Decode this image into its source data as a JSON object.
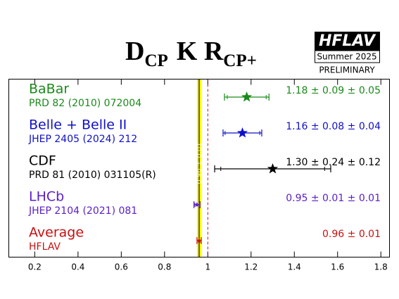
{
  "chart_data": {
    "type": "forest",
    "title_parts": [
      "D",
      "CP",
      "K R",
      "CP+"
    ],
    "logo": {
      "name": "HFLAV",
      "season": "Summer 2025",
      "status": "PRELIMINARY"
    },
    "xlim": [
      0.08,
      1.84
    ],
    "xticks": [
      0.2,
      0.4,
      0.6,
      0.8,
      1,
      1.2,
      1.4,
      1.6,
      1.8
    ],
    "reference_line": 1,
    "series": [
      {
        "name": "BaBar",
        "reference": "PRD 82 (2010) 072004",
        "color": "#1a8a1a",
        "value": 1.18,
        "stat": 0.09,
        "syst": 0.05,
        "value_label": "1.18 ± 0.09 ± 0.05"
      },
      {
        "name": "Belle + Belle II",
        "reference": "JHEP 2405 (2024) 212",
        "color": "#1010c8",
        "value": 1.16,
        "stat": 0.08,
        "syst": 0.04,
        "value_label": "1.16 ± 0.08 ± 0.04"
      },
      {
        "name": "CDF",
        "reference": "PRD 81 (2010) 031105(R)",
        "color": "#000000",
        "value": 1.3,
        "stat": 0.24,
        "syst": 0.12,
        "value_label": "1.30 ± 0.24 ± 0.12"
      },
      {
        "name": "LHCb",
        "reference": "JHEP 2104 (2021) 081",
        "color": "#5a20c8",
        "value": 0.95,
        "stat": 0.01,
        "syst": 0.01,
        "value_label": "0.95 ± 0.01 ± 0.01"
      }
    ],
    "average": {
      "name": "Average",
      "reference": "HFLAV",
      "color": "#c81010",
      "band_color": "#ffff00",
      "value": 0.96,
      "error": 0.01,
      "value_label": "0.96 ± 0.01"
    }
  }
}
